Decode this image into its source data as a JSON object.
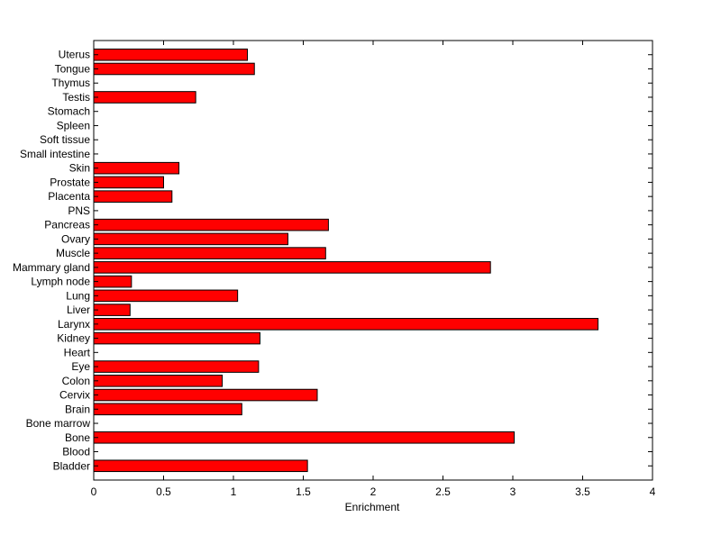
{
  "chart_data": {
    "type": "bar",
    "orientation": "horizontal",
    "categories": [
      "Bladder",
      "Blood",
      "Bone",
      "Bone marrow",
      "Brain",
      "Cervix",
      "Colon",
      "Eye",
      "Heart",
      "Kidney",
      "Larynx",
      "Liver",
      "Lung",
      "Lymph node",
      "Mammary gland",
      "Muscle",
      "Ovary",
      "Pancreas",
      "PNS",
      "Placenta",
      "Prostate",
      "Skin",
      "Small intestine",
      "Soft tissue",
      "Spleen",
      "Stomach",
      "Testis",
      "Thymus",
      "Tongue",
      "Uterus"
    ],
    "values": [
      1.53,
      0,
      3.01,
      0,
      1.06,
      1.6,
      0.92,
      1.18,
      0,
      1.19,
      3.61,
      0.26,
      1.03,
      0.27,
      2.84,
      1.66,
      1.39,
      1.68,
      0,
      0.56,
      0.5,
      0.61,
      0,
      0,
      0,
      0,
      0.73,
      0,
      1.15,
      1.1
    ],
    "xlabel": "Enrichment",
    "ylabel": "",
    "title": "",
    "xlim": [
      0,
      4
    ],
    "xticks": [
      "0",
      "0.5",
      "1",
      "1.5",
      "2",
      "2.5",
      "3",
      "3.5",
      "4"
    ],
    "grid": false,
    "bar_color": "#ff0000",
    "bar_edge_color": "#000000"
  }
}
